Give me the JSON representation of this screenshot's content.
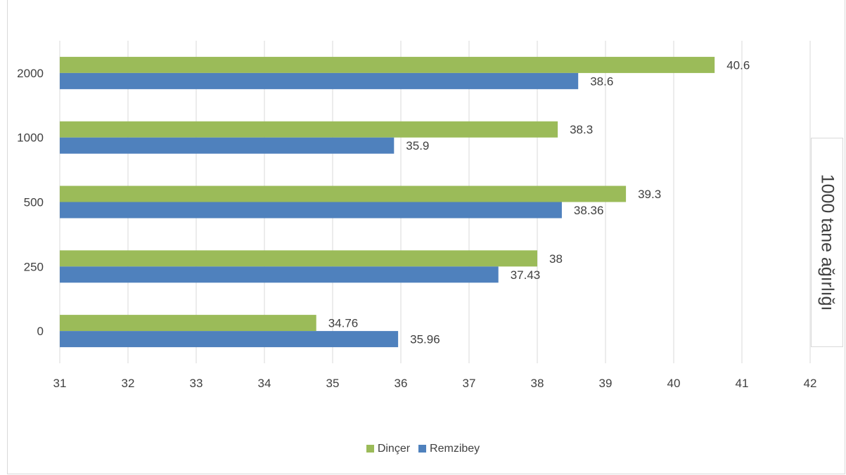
{
  "chart_data": {
    "type": "bar",
    "orientation": "horizontal",
    "categories": [
      "0",
      "250",
      "500",
      "1000",
      "2000"
    ],
    "series": [
      {
        "name": "Dinçer",
        "color": "#9bbb59",
        "values": [
          34.76,
          38,
          39.3,
          38.3,
          40.6
        ],
        "labels": [
          "34.76",
          "38",
          "39.3",
          "38.3",
          "40.6"
        ]
      },
      {
        "name": "Remzibey",
        "color": "#4f81bd",
        "values": [
          35.96,
          37.43,
          38.36,
          35.9,
          38.6
        ],
        "labels": [
          "35.96",
          "37.43",
          "38.36",
          "35.9",
          "38.6"
        ]
      }
    ],
    "xlim": [
      31,
      42
    ],
    "x_ticks": [
      "31",
      "32",
      "33",
      "34",
      "35",
      "36",
      "37",
      "38",
      "39",
      "40",
      "41",
      "42"
    ],
    "ylabel": "1000 tane ağırlığı",
    "grid": true,
    "legend_position": "bottom"
  }
}
